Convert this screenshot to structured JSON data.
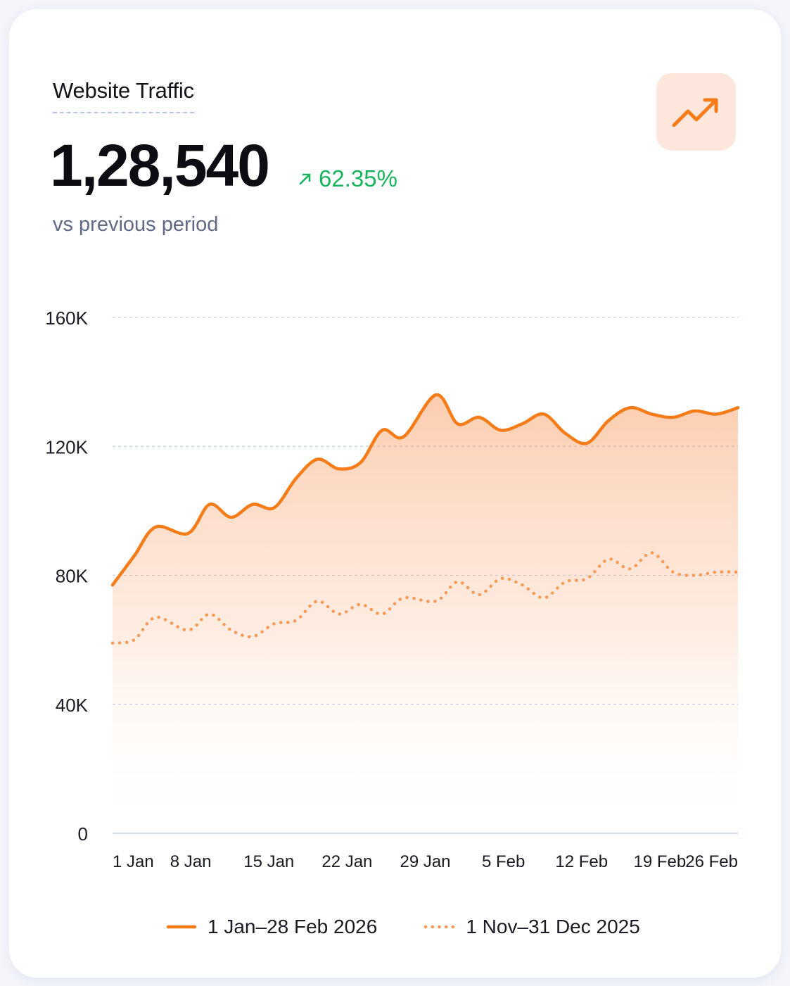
{
  "card": {
    "title": "Website Traffic",
    "total_value": "1,28,540",
    "change_text": "62.35%",
    "change_direction": "up",
    "comparison_text": "vs previous period",
    "icon": "trending-up-icon"
  },
  "colors": {
    "accent": "#f57c19",
    "accent_tile": "#fde7dc",
    "positive": "#19b35d",
    "grid": "#c9d3ee"
  },
  "chart_data": {
    "type": "area",
    "xlabel": "",
    "ylabel": "",
    "x_ticks": [
      "1 Jan",
      "8 Jan",
      "15 Jan",
      "22 Jan",
      "29 Jan",
      "5 Feb",
      "12 Feb",
      "19 Feb",
      "26 Feb"
    ],
    "y_ticks": [
      "160K",
      "120K",
      "80K",
      "40K",
      "0"
    ],
    "y_tick_values": [
      160000,
      120000,
      80000,
      40000,
      0
    ],
    "ylim": [
      0,
      160000
    ],
    "grid": true,
    "legend_position": "bottom",
    "x": [
      "2026-01-01",
      "2026-01-03",
      "2026-01-05",
      "2026-01-08",
      "2026-01-10",
      "2026-01-12",
      "2026-01-14",
      "2026-01-16",
      "2026-01-18",
      "2026-01-20",
      "2026-01-22",
      "2026-01-24",
      "2026-01-26",
      "2026-01-28",
      "2026-01-31",
      "2026-02-02",
      "2026-02-04",
      "2026-02-06",
      "2026-02-08",
      "2026-02-10",
      "2026-02-12",
      "2026-02-14",
      "2026-02-16",
      "2026-02-18",
      "2026-02-20",
      "2026-02-22",
      "2026-02-24",
      "2026-02-26",
      "2026-02-28"
    ],
    "series": [
      {
        "name": "1 Jan–28 Feb 2026",
        "style": "solid",
        "area_fill": true,
        "values": [
          77000,
          86000,
          95000,
          93000,
          102000,
          98000,
          102000,
          101000,
          110000,
          116000,
          113000,
          115000,
          125000,
          123000,
          136000,
          127000,
          129000,
          125000,
          127000,
          130000,
          124000,
          121000,
          128000,
          132000,
          130000,
          129000,
          131000,
          130000,
          132000
        ]
      },
      {
        "name": "1 Nov–31 Dec 2025",
        "style": "dotted",
        "area_fill": false,
        "values": [
          59000,
          60000,
          67000,
          63000,
          68000,
          63000,
          61000,
          65000,
          66000,
          72000,
          68000,
          71000,
          68000,
          73000,
          72000,
          78000,
          74000,
          79000,
          77000,
          73000,
          78000,
          79000,
          85000,
          82000,
          87000,
          81000,
          80000,
          81000,
          81000
        ]
      }
    ]
  }
}
